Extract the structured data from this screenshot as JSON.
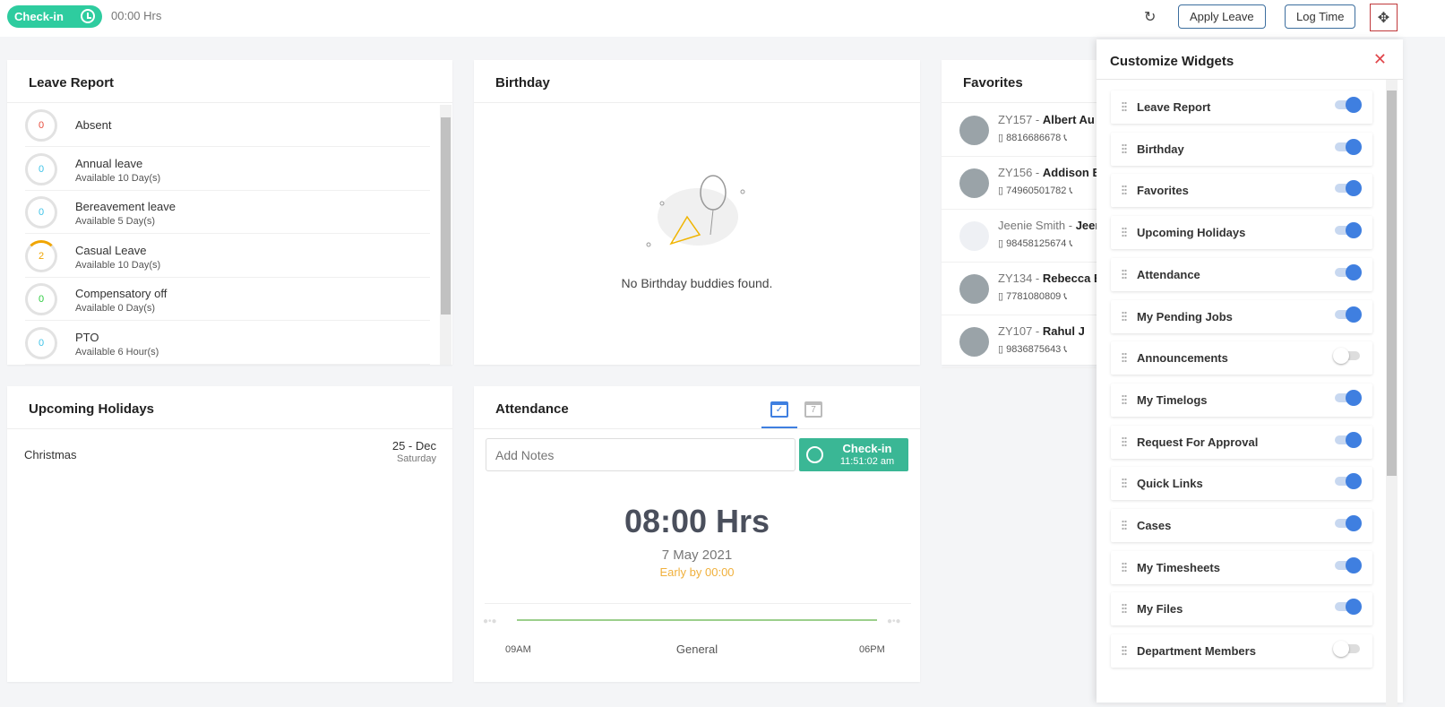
{
  "topbar": {
    "checkin_label": "Check-in",
    "hours": "00:00 Hrs",
    "apply_leave": "Apply Leave",
    "log_time": "Log Time"
  },
  "leave_report": {
    "title": "Leave Report",
    "items": [
      {
        "count": "0",
        "name": "Absent",
        "sub": "",
        "color": "#e74c3c"
      },
      {
        "count": "0",
        "name": "Annual leave",
        "sub": "Available 10 Day(s)",
        "color": "#3fc3e8"
      },
      {
        "count": "0",
        "name": "Bereavement leave",
        "sub": "Available 5 Day(s)",
        "color": "#3fc3e8"
      },
      {
        "count": "2",
        "name": "Casual Leave",
        "sub": "Available 10 Day(s)",
        "color": "#f0a500"
      },
      {
        "count": "0",
        "name": "Compensatory off",
        "sub": "Available 0 Day(s)",
        "color": "#2ecc40"
      },
      {
        "count": "0",
        "name": "PTO",
        "sub": "Available 6 Hour(s)",
        "color": "#3fc3e8"
      }
    ]
  },
  "birthday": {
    "title": "Birthday",
    "empty": "No Birthday buddies found."
  },
  "favorites": {
    "title": "Favorites",
    "items": [
      {
        "id": "ZY157 - ",
        "name": "Albert Au",
        "phone": "8816686678"
      },
      {
        "id": "ZY156 - ",
        "name": "Addison B",
        "phone": "74960501782"
      },
      {
        "id": "Jeenie Smith - ",
        "name": "Jeen",
        "phone": "98458125674"
      },
      {
        "id": "ZY134 - ",
        "name": "Rebecca B",
        "phone": "7781080809"
      },
      {
        "id": "ZY107 - ",
        "name": "Rahul J",
        "phone": "9836875643"
      }
    ]
  },
  "holidays": {
    "title": "Upcoming Holidays",
    "items": [
      {
        "name": "Christmas",
        "date": "25 - Dec",
        "day": "Saturday"
      }
    ]
  },
  "attendance": {
    "title": "Attendance",
    "notes_placeholder": "Add Notes",
    "checkin_label": "Check-in",
    "checkin_time": "11:51:02 am",
    "hours": "08:00 Hrs",
    "date": "7 May 2021",
    "status": "Early by 00:00",
    "shift_start": "09AM",
    "shift_name": "General",
    "shift_end": "06PM",
    "accent": "#3ab795"
  },
  "panel": {
    "title": "Customize Widgets",
    "widgets": [
      {
        "label": "Leave Report",
        "on": true
      },
      {
        "label": "Birthday",
        "on": true
      },
      {
        "label": "Favorites",
        "on": true
      },
      {
        "label": "Upcoming Holidays",
        "on": true
      },
      {
        "label": "Attendance",
        "on": true
      },
      {
        "label": "My Pending Jobs",
        "on": true
      },
      {
        "label": "Announcements",
        "on": false
      },
      {
        "label": "My Timelogs",
        "on": true
      },
      {
        "label": "Request For Approval",
        "on": true
      },
      {
        "label": "Quick Links",
        "on": true
      },
      {
        "label": "Cases",
        "on": true
      },
      {
        "label": "My Timesheets",
        "on": true
      },
      {
        "label": "My Files",
        "on": true
      },
      {
        "label": "Department Members",
        "on": false
      }
    ]
  }
}
